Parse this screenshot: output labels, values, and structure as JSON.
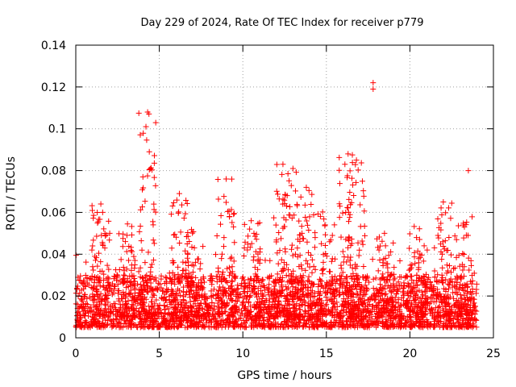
{
  "chart_data": {
    "type": "scatter",
    "title": "Day 229 of 2024, Rate Of TEC Index for receiver p779",
    "xlabel": "GPS time / hours",
    "ylabel": "ROTI / TECUs",
    "xlim": [
      0,
      25
    ],
    "ylim": [
      0,
      0.14
    ],
    "x_ticks": [
      0,
      5,
      10,
      15,
      20,
      25
    ],
    "x_tick_labels": [
      "0",
      "5",
      "10",
      "15",
      "20",
      "25"
    ],
    "y_ticks": [
      0,
      0.02,
      0.04,
      0.06,
      0.08,
      0.1,
      0.12,
      0.14
    ],
    "y_tick_labels": [
      "0",
      "0.02",
      "0.04",
      "0.06",
      "0.08",
      "0.1",
      "0.12",
      "0.14"
    ],
    "grid": true,
    "marker": "+",
    "color": "#ff0000",
    "data_x_range_hours": [
      0,
      24
    ],
    "baseline_band": [
      0.005,
      0.03
    ],
    "notable_points": [
      {
        "x": 4.3,
        "y": 0.108
      },
      {
        "x": 4.2,
        "y": 0.101
      },
      {
        "x": 4.4,
        "y": 0.089
      },
      {
        "x": 6.2,
        "y": 0.069
      },
      {
        "x": 9.0,
        "y": 0.076
      },
      {
        "x": 10.5,
        "y": 0.056
      },
      {
        "x": 12.4,
        "y": 0.083
      },
      {
        "x": 13.0,
        "y": 0.081
      },
      {
        "x": 13.8,
        "y": 0.072
      },
      {
        "x": 16.3,
        "y": 0.088
      },
      {
        "x": 16.8,
        "y": 0.085
      },
      {
        "x": 17.8,
        "y": 0.122
      },
      {
        "x": 17.8,
        "y": 0.119
      },
      {
        "x": 22.0,
        "y": 0.065
      },
      {
        "x": 23.5,
        "y": 0.08
      },
      {
        "x": 1.5,
        "y": 0.064
      }
    ],
    "activity_bursts": [
      {
        "center": 1.5,
        "peak": 0.064
      },
      {
        "center": 3.0,
        "peak": 0.055
      },
      {
        "center": 4.3,
        "peak": 0.108
      },
      {
        "center": 6.2,
        "peak": 0.069
      },
      {
        "center": 7.2,
        "peak": 0.052
      },
      {
        "center": 9.0,
        "peak": 0.076
      },
      {
        "center": 10.5,
        "peak": 0.056
      },
      {
        "center": 12.4,
        "peak": 0.083
      },
      {
        "center": 13.0,
        "peak": 0.081
      },
      {
        "center": 13.8,
        "peak": 0.072
      },
      {
        "center": 15.0,
        "peak": 0.062
      },
      {
        "center": 16.3,
        "peak": 0.088
      },
      {
        "center": 16.8,
        "peak": 0.085
      },
      {
        "center": 18.5,
        "peak": 0.05
      },
      {
        "center": 20.5,
        "peak": 0.055
      },
      {
        "center": 22.0,
        "peak": 0.065
      },
      {
        "center": 23.2,
        "peak": 0.058
      }
    ]
  }
}
